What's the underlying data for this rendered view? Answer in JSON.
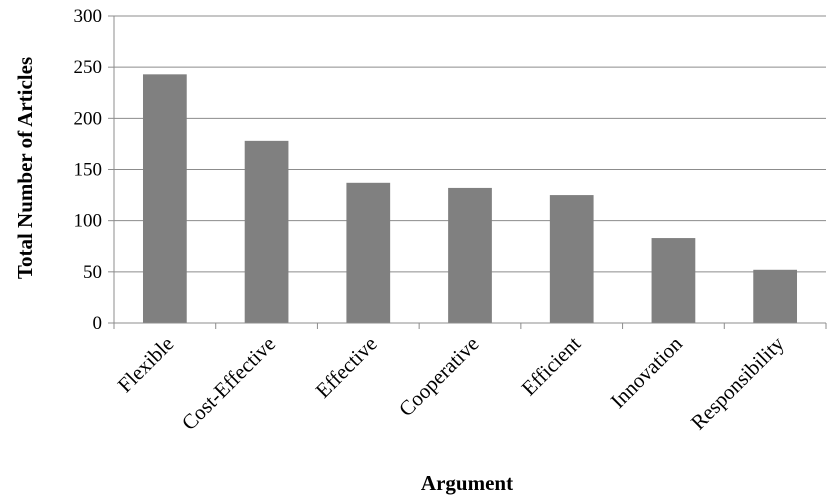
{
  "chart_data": {
    "type": "bar",
    "title": "",
    "xlabel": "Argument",
    "ylabel": "Total Number of Articles",
    "categories": [
      "Flexible",
      "Cost-Effective",
      "Effective",
      "Cooperative",
      "Efficient",
      "Innovation",
      "Responsibility"
    ],
    "values": [
      243,
      178,
      137,
      132,
      125,
      83,
      52
    ],
    "ylim": [
      0,
      300
    ],
    "yticks": [
      0,
      50,
      100,
      150,
      200,
      250,
      300
    ],
    "grid": true,
    "legend": "none",
    "bar_color": "#808080",
    "grid_color": "#8c8c8c",
    "axis_color": "#8c8c8c"
  }
}
